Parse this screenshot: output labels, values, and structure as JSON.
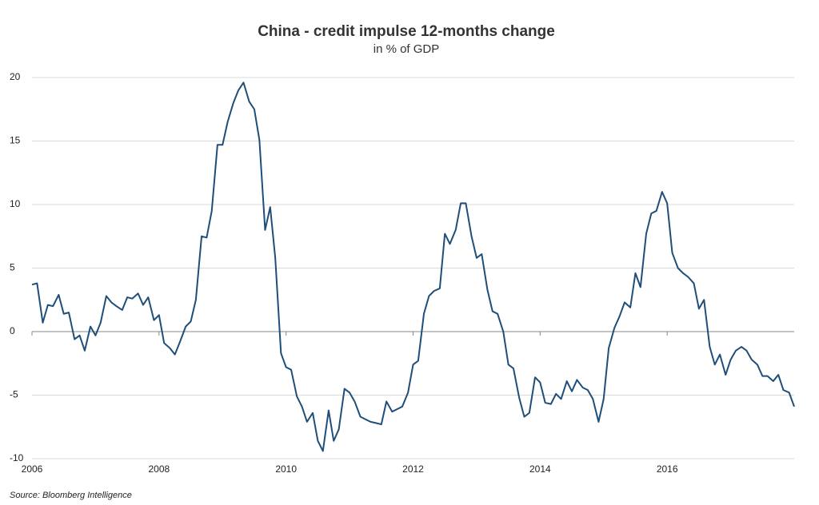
{
  "chart_data": {
    "type": "line",
    "title": "China - credit impulse 12-months change",
    "subtitle": "in % of GDP",
    "source": "Source: Bloomberg Intelligence",
    "x": [
      2006,
      2006.08,
      2006.17,
      2006.25,
      2006.33,
      2006.42,
      2006.5,
      2006.58,
      2006.67,
      2006.75,
      2006.83,
      2006.92,
      2007,
      2007.08,
      2007.17,
      2007.25,
      2007.33,
      2007.42,
      2007.5,
      2007.58,
      2007.67,
      2007.75,
      2007.83,
      2007.92,
      2008,
      2008.08,
      2008.17,
      2008.25,
      2008.33,
      2008.42,
      2008.5,
      2008.58,
      2008.67,
      2008.75,
      2008.83,
      2008.92,
      2009,
      2009.08,
      2009.17,
      2009.25,
      2009.33,
      2009.42,
      2009.5,
      2009.58,
      2009.67,
      2009.75,
      2009.83,
      2009.92,
      2010,
      2010.08,
      2010.17,
      2010.25,
      2010.33,
      2010.42,
      2010.5,
      2010.58,
      2010.67,
      2010.75,
      2010.83,
      2010.92,
      2011,
      2011.08,
      2011.17,
      2011.25,
      2011.33,
      2011.42,
      2011.5,
      2011.58,
      2011.67,
      2011.75,
      2011.83,
      2011.92,
      2012,
      2012.08,
      2012.17,
      2012.25,
      2012.33,
      2012.42,
      2012.5,
      2012.58,
      2012.67,
      2012.75,
      2012.83,
      2012.92,
      2013,
      2013.08,
      2013.17,
      2013.25,
      2013.33,
      2013.42,
      2013.5,
      2013.58,
      2013.67,
      2013.75,
      2013.83,
      2013.92,
      2014,
      2014.08,
      2014.17,
      2014.25,
      2014.33,
      2014.42,
      2014.5,
      2014.58,
      2014.67,
      2014.75,
      2014.83,
      2014.92,
      2015,
      2015.08,
      2015.17,
      2015.25,
      2015.33,
      2015.42,
      2015.5,
      2015.58,
      2015.67,
      2015.75,
      2015.83,
      2015.92,
      2016,
      2016.08,
      2016.17,
      2016.25,
      2016.33,
      2016.42,
      2016.5,
      2016.58,
      2016.67,
      2016.75,
      2016.83,
      2016.92,
      2017,
      2017.08,
      2017.17,
      2017.25,
      2017.33,
      2017.42,
      2017.5,
      2017.58,
      2017.67,
      2017.75,
      2017.83,
      2017.92,
      2018
    ],
    "series": [
      {
        "color": "#1f4e79",
        "values": [
          3.7,
          3.8,
          0.7,
          2.1,
          2.0,
          2.9,
          1.4,
          1.5,
          -0.6,
          -0.3,
          -1.5,
          0.4,
          -0.3,
          0.7,
          2.8,
          2.3,
          2.0,
          1.7,
          2.7,
          2.6,
          3.0,
          2.1,
          2.7,
          0.9,
          1.3,
          -0.9,
          -1.3,
          -1.8,
          -0.8,
          0.4,
          0.8,
          2.5,
          7.5,
          7.4,
          9.5,
          14.7,
          14.7,
          16.5,
          18.0,
          19.0,
          19.6,
          18.1,
          17.5,
          15.1,
          8.0,
          9.8,
          5.8,
          -1.7,
          -2.8,
          -3.0,
          -5.1,
          -5.9,
          -7.1,
          -6.4,
          -8.6,
          -9.4,
          -6.2,
          -8.6,
          -7.7,
          -4.5,
          -4.8,
          -5.5,
          -6.7,
          -6.9,
          -7.1,
          -7.2,
          -7.3,
          -5.5,
          -6.3,
          -6.1,
          -5.9,
          -4.8,
          -2.6,
          -2.3,
          1.4,
          2.8,
          3.2,
          3.4,
          7.7,
          6.9,
          8.0,
          10.1,
          10.1,
          7.5,
          5.8,
          6.1,
          3.3,
          1.6,
          1.4,
          0.0,
          -2.6,
          -2.9,
          -5.2,
          -6.7,
          -6.4,
          -3.6,
          -4.0,
          -5.6,
          -5.7,
          -4.9,
          -5.3,
          -3.9,
          -4.7,
          -3.8,
          -4.4,
          -4.6,
          -5.3,
          -7.1,
          -5.3,
          -1.3,
          0.3,
          1.2,
          2.3,
          1.9,
          4.6,
          3.5,
          7.7,
          9.3,
          9.5,
          11.0,
          10.1,
          6.2,
          5.0,
          4.6,
          4.3,
          3.8,
          1.8,
          2.5,
          -1.2,
          -2.6,
          -1.8,
          -3.4,
          -2.2,
          -1.5,
          -1.2,
          -1.5,
          -2.2,
          -2.6,
          -3.5,
          -3.5,
          -3.9,
          -3.4,
          -4.6,
          -4.8,
          -5.9
        ]
      }
    ],
    "xlim": [
      2006,
      2018
    ],
    "xticks": [
      2006,
      2008,
      2010,
      2012,
      2014,
      2016
    ],
    "ylim": [
      -10,
      20
    ],
    "yticks": [
      -10,
      -5,
      0,
      5,
      10,
      15,
      20
    ],
    "grid": true
  }
}
